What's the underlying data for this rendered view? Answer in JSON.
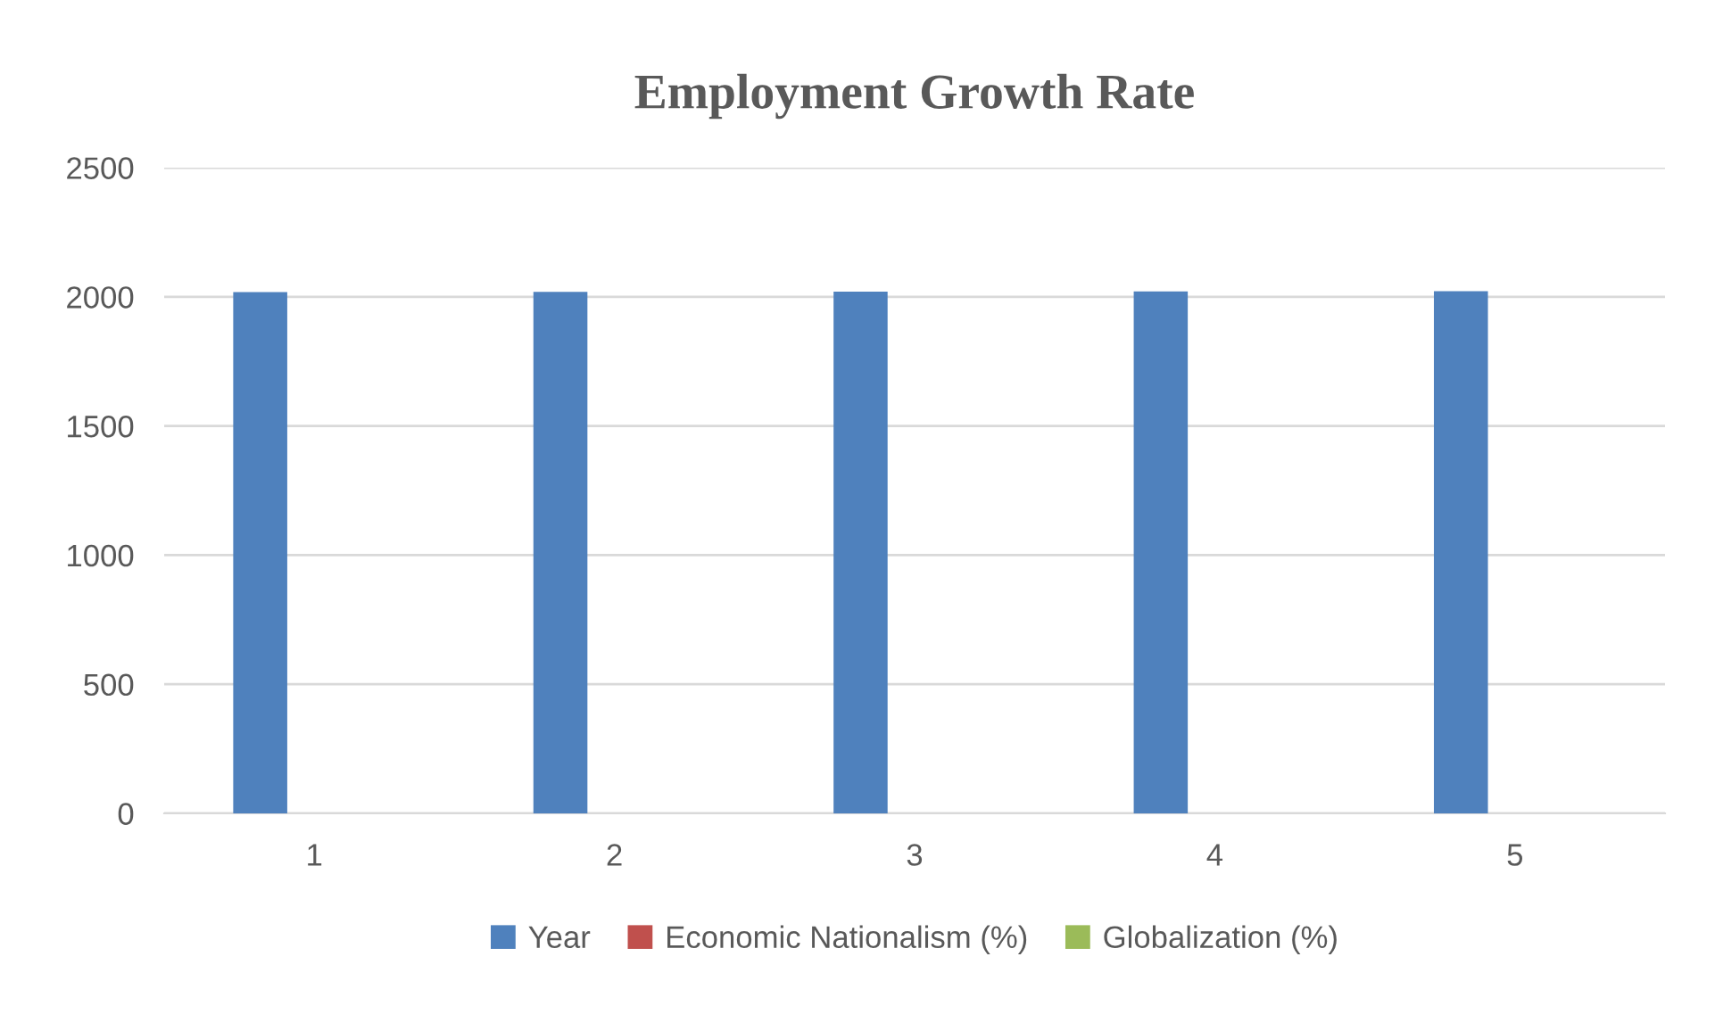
{
  "chart_data": {
    "type": "bar",
    "title": "Employment Growth Rate",
    "categories": [
      "1",
      "2",
      "3",
      "4",
      "5"
    ],
    "series": [
      {
        "name": "Year",
        "color": "#4f81bd",
        "values": [
          2018,
          2019,
          2020,
          2021,
          2022
        ]
      },
      {
        "name": "Economic Nationalism (%)",
        "color": "#c0504d",
        "values": [
          null,
          null,
          null,
          null,
          null
        ]
      },
      {
        "name": "Globalization (%)",
        "color": "#9bbb59",
        "values": [
          null,
          null,
          null,
          null,
          null
        ]
      }
    ],
    "ylim": [
      0,
      2500
    ],
    "yticks": [
      0,
      500,
      1000,
      1500,
      2000,
      2500
    ],
    "grid": "y",
    "legend": "bottom"
  }
}
